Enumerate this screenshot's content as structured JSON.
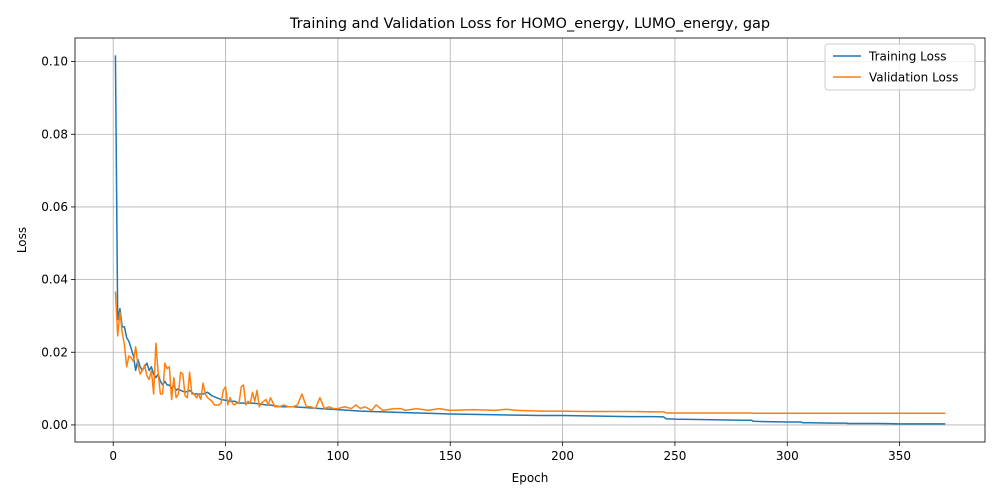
{
  "chart_data": {
    "type": "line",
    "title": "Training and Validation Loss for HOMO_energy, LUMO_energy, gap",
    "xlabel": "Epoch",
    "ylabel": "Loss",
    "xlim": [
      -17,
      388
    ],
    "ylim": [
      -0.0047,
      0.1065
    ],
    "xticks": [
      0,
      50,
      100,
      150,
      200,
      250,
      300,
      350
    ],
    "yticks": [
      0.0,
      0.02,
      0.04,
      0.06,
      0.08,
      0.1
    ],
    "ytick_labels": [
      "0.00",
      "0.02",
      "0.04",
      "0.06",
      "0.08",
      "0.10"
    ],
    "grid": true,
    "legend_position": "top-right",
    "series": [
      {
        "name": "Training Loss",
        "color": "#1f77b4",
        "x": [
          1,
          2,
          3,
          4,
          5,
          6,
          7,
          8,
          9,
          10,
          11,
          12,
          13,
          14,
          15,
          16,
          17,
          18,
          19,
          20,
          21,
          22,
          23,
          24,
          25,
          26,
          27,
          28,
          29,
          30,
          32,
          34,
          36,
          38,
          40,
          42,
          44,
          46,
          48,
          50,
          52,
          54,
          56,
          58,
          60,
          62,
          65,
          68,
          70,
          72,
          75,
          78,
          80,
          85,
          90,
          95,
          100,
          110,
          120,
          130,
          140,
          150,
          160,
          170,
          180,
          190,
          200,
          210,
          220,
          230,
          240,
          245,
          246,
          250,
          260,
          270,
          280,
          284,
          285,
          290,
          300,
          306,
          307,
          310,
          320,
          326,
          327,
          330,
          340,
          350,
          360,
          370
        ],
        "y": [
          0.1015,
          0.029,
          0.032,
          0.027,
          0.027,
          0.024,
          0.023,
          0.021,
          0.019,
          0.015,
          0.018,
          0.016,
          0.015,
          0.016,
          0.017,
          0.015,
          0.016,
          0.014,
          0.013,
          0.014,
          0.012,
          0.011,
          0.012,
          0.011,
          0.011,
          0.01,
          0.011,
          0.0095,
          0.01,
          0.0095,
          0.009,
          0.0095,
          0.0085,
          0.0085,
          0.0085,
          0.009,
          0.008,
          0.0075,
          0.007,
          0.0068,
          0.0065,
          0.0065,
          0.006,
          0.006,
          0.006,
          0.006,
          0.0058,
          0.0055,
          0.0055,
          0.0052,
          0.005,
          0.005,
          0.005,
          0.0048,
          0.0046,
          0.0044,
          0.0042,
          0.0038,
          0.0036,
          0.0034,
          0.0032,
          0.003,
          0.0029,
          0.0028,
          0.0027,
          0.0026,
          0.0026,
          0.0025,
          0.0024,
          0.0023,
          0.0023,
          0.0022,
          0.0017,
          0.0016,
          0.0015,
          0.0014,
          0.0013,
          0.0013,
          0.001,
          0.0009,
          0.0008,
          0.0008,
          0.0006,
          0.0006,
          0.0005,
          0.0005,
          0.0004,
          0.0004,
          0.0004,
          0.0003,
          0.0003,
          0.0003
        ]
      },
      {
        "name": "Validation Loss",
        "color": "#ff7f0e",
        "x": [
          1,
          2,
          3,
          4,
          5,
          6,
          7,
          8,
          9,
          10,
          11,
          12,
          13,
          14,
          15,
          16,
          17,
          18,
          19,
          20,
          21,
          22,
          23,
          24,
          25,
          26,
          27,
          28,
          29,
          30,
          31,
          32,
          33,
          34,
          35,
          36,
          37,
          38,
          39,
          40,
          41,
          42,
          43,
          44,
          45,
          46,
          47,
          48,
          49,
          50,
          51,
          52,
          53,
          54,
          55,
          56,
          57,
          58,
          59,
          60,
          61,
          62,
          63,
          64,
          65,
          66,
          67,
          68,
          69,
          70,
          72,
          74,
          76,
          78,
          80,
          82,
          84,
          86,
          88,
          90,
          92,
          94,
          96,
          98,
          100,
          103,
          106,
          108,
          110,
          112,
          115,
          117,
          120,
          125,
          128,
          130,
          135,
          140,
          145,
          150,
          160,
          170,
          175,
          180,
          190,
          200,
          210,
          220,
          230,
          240,
          245,
          246,
          250,
          260,
          270,
          280,
          284,
          285,
          290,
          300,
          310,
          320,
          330,
          340,
          350,
          360,
          370
        ],
        "y": [
          0.0365,
          0.0245,
          0.031,
          0.0255,
          0.022,
          0.016,
          0.019,
          0.0185,
          0.0175,
          0.0215,
          0.0165,
          0.014,
          0.015,
          0.0165,
          0.0135,
          0.0125,
          0.015,
          0.0085,
          0.0225,
          0.0145,
          0.0085,
          0.0085,
          0.017,
          0.0155,
          0.016,
          0.007,
          0.013,
          0.0075,
          0.0085,
          0.0145,
          0.014,
          0.008,
          0.0075,
          0.0145,
          0.0085,
          0.0085,
          0.0075,
          0.0085,
          0.007,
          0.0115,
          0.0085,
          0.0075,
          0.007,
          0.0065,
          0.0055,
          0.0055,
          0.0055,
          0.006,
          0.0095,
          0.0105,
          0.0055,
          0.0075,
          0.006,
          0.0055,
          0.006,
          0.006,
          0.0105,
          0.011,
          0.0055,
          0.0065,
          0.006,
          0.009,
          0.0065,
          0.0095,
          0.005,
          0.006,
          0.0065,
          0.007,
          0.0055,
          0.0075,
          0.005,
          0.005,
          0.0055,
          0.005,
          0.005,
          0.0055,
          0.0085,
          0.005,
          0.005,
          0.0045,
          0.0075,
          0.0045,
          0.005,
          0.0045,
          0.0045,
          0.005,
          0.0045,
          0.0055,
          0.0045,
          0.005,
          0.004,
          0.0055,
          0.004,
          0.0045,
          0.0045,
          0.004,
          0.0045,
          0.004,
          0.0045,
          0.004,
          0.0042,
          0.004,
          0.0043,
          0.004,
          0.0038,
          0.0038,
          0.0037,
          0.0037,
          0.0037,
          0.0036,
          0.0036,
          0.0033,
          0.0033,
          0.0033,
          0.0033,
          0.0033,
          0.0033,
          0.0032,
          0.0032,
          0.0032,
          0.0032,
          0.0032,
          0.0032,
          0.0032,
          0.0032,
          0.0032,
          0.0032
        ]
      }
    ]
  }
}
